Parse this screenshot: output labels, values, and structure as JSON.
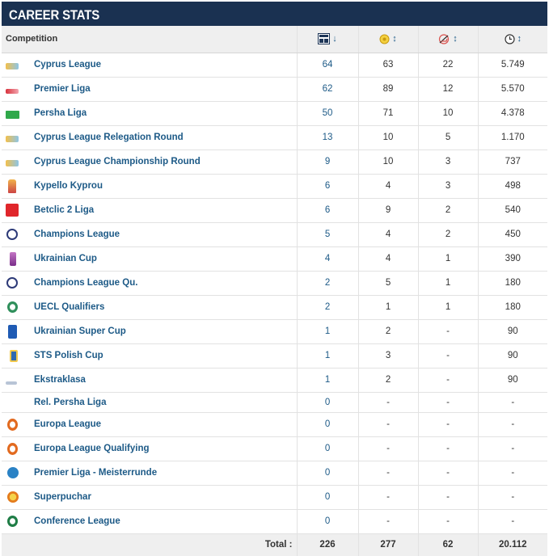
{
  "title": "CAREER STATS",
  "columns": {
    "competition": "Competition",
    "appearances_icon": "lineup-icon",
    "goals_icon": "ball-icon",
    "assists_icon": "boot-icon",
    "minutes_icon": "clock-icon",
    "sort_desc": "↓",
    "sort_both": "↕"
  },
  "rows": [
    {
      "name": "Cyprus League",
      "logo": "cyprus-league-logo",
      "apps": "64",
      "goals": "63",
      "assists": "22",
      "minutes": "5.749"
    },
    {
      "name": "Premier Liga",
      "logo": "premier-liga-logo",
      "apps": "62",
      "goals": "89",
      "assists": "12",
      "minutes": "5.570"
    },
    {
      "name": "Persha Liga",
      "logo": "persha-liga-logo",
      "apps": "50",
      "goals": "71",
      "assists": "10",
      "minutes": "4.378"
    },
    {
      "name": "Cyprus League Relegation Round",
      "logo": "cyprus-league-logo",
      "apps": "13",
      "goals": "10",
      "assists": "5",
      "minutes": "1.170"
    },
    {
      "name": "Cyprus League Championship Round",
      "logo": "cyprus-league-logo",
      "apps": "9",
      "goals": "10",
      "assists": "3",
      "minutes": "737"
    },
    {
      "name": "Kypello Kyprou",
      "logo": "kypello-kyprou-logo",
      "apps": "6",
      "goals": "4",
      "assists": "3",
      "minutes": "498"
    },
    {
      "name": "Betclic 2 Liga",
      "logo": "betclic-2-liga-logo",
      "apps": "6",
      "goals": "9",
      "assists": "2",
      "minutes": "540"
    },
    {
      "name": "Champions League",
      "logo": "champions-league-logo",
      "apps": "5",
      "goals": "4",
      "assists": "2",
      "minutes": "450"
    },
    {
      "name": "Ukrainian Cup",
      "logo": "ukrainian-cup-logo",
      "apps": "4",
      "goals": "4",
      "assists": "1",
      "minutes": "390"
    },
    {
      "name": "Champions League Qu.",
      "logo": "champions-league-logo",
      "apps": "2",
      "goals": "5",
      "assists": "1",
      "minutes": "180"
    },
    {
      "name": "UECL Qualifiers",
      "logo": "uecl-logo",
      "apps": "2",
      "goals": "1",
      "assists": "1",
      "minutes": "180"
    },
    {
      "name": "Ukrainian Super Cup",
      "logo": "ukrainian-super-cup-logo",
      "apps": "1",
      "goals": "2",
      "assists": "-",
      "minutes": "90"
    },
    {
      "name": "STS Polish Cup",
      "logo": "sts-polish-cup-logo",
      "apps": "1",
      "goals": "3",
      "assists": "-",
      "minutes": "90"
    },
    {
      "name": "Ekstraklasa",
      "logo": "ekstraklasa-logo",
      "apps": "1",
      "goals": "2",
      "assists": "-",
      "minutes": "90"
    },
    {
      "name": "Rel. Persha Liga",
      "logo": "",
      "apps": "0",
      "goals": "-",
      "assists": "-",
      "minutes": "-"
    },
    {
      "name": "Europa League",
      "logo": "europa-league-logo",
      "apps": "0",
      "goals": "-",
      "assists": "-",
      "minutes": "-"
    },
    {
      "name": "Europa League Qualifying",
      "logo": "europa-league-logo",
      "apps": "0",
      "goals": "-",
      "assists": "-",
      "minutes": "-"
    },
    {
      "name": "Premier Liga - Meisterrunde",
      "logo": "meisterrunde-logo",
      "apps": "0",
      "goals": "-",
      "assists": "-",
      "minutes": "-"
    },
    {
      "name": "Superpuchar",
      "logo": "superpuchar-logo",
      "apps": "0",
      "goals": "-",
      "assists": "-",
      "minutes": "-"
    },
    {
      "name": "Conference League",
      "logo": "conference-league-logo",
      "apps": "0",
      "goals": "-",
      "assists": "-",
      "minutes": "-"
    }
  ],
  "totals": {
    "label": "Total :",
    "apps": "226",
    "goals": "277",
    "assists": "62",
    "minutes": "20.112"
  }
}
